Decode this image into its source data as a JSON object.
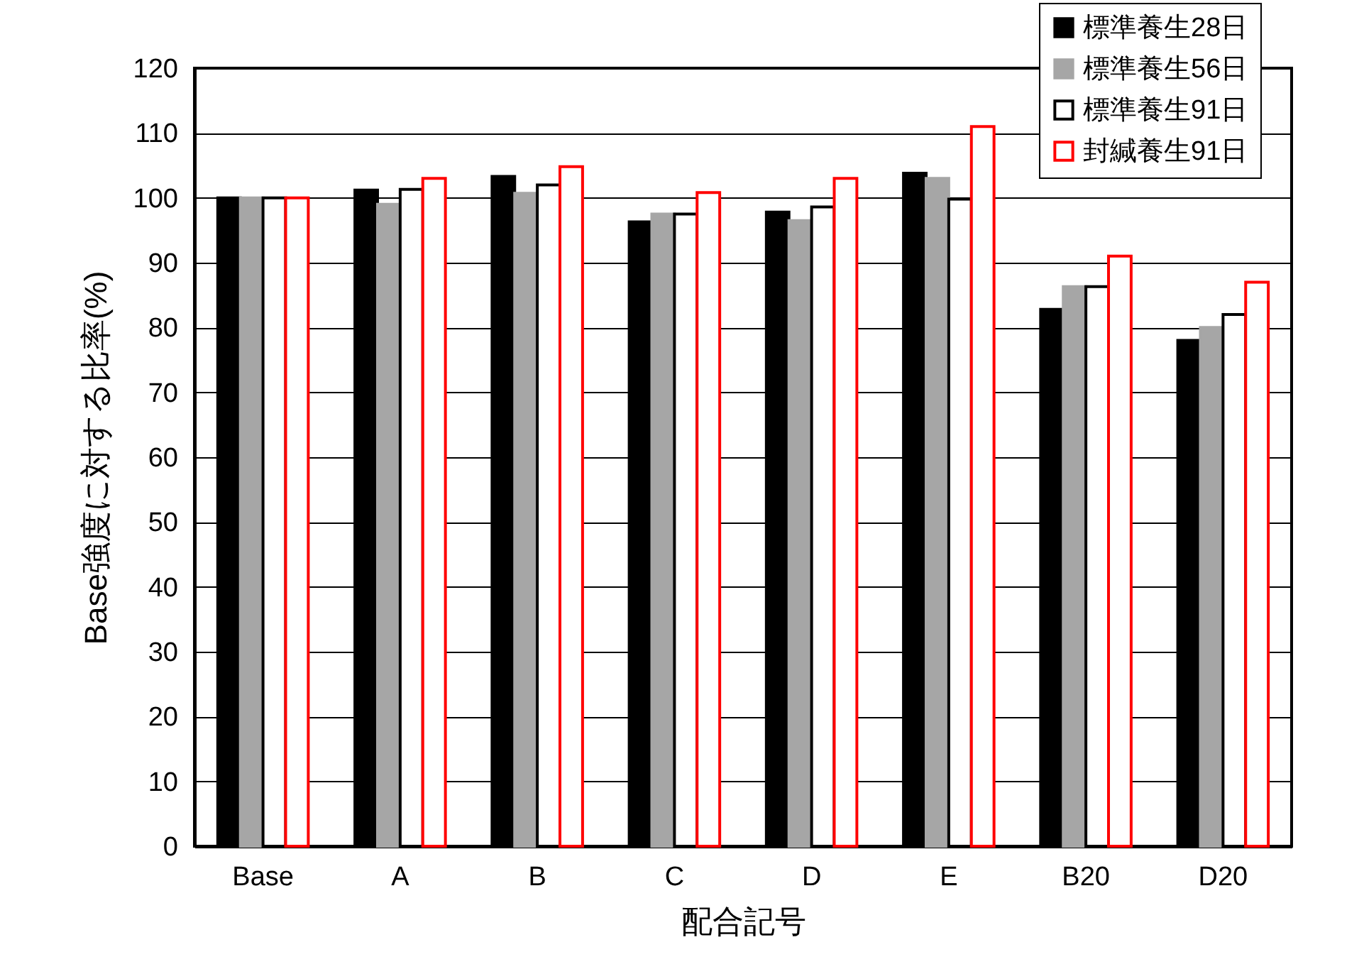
{
  "chart_data": {
    "type": "bar",
    "xlabel": "配合記号",
    "ylabel": "Base強度に対する比率(%)",
    "categories": [
      "Base",
      "A",
      "B",
      "C",
      "D",
      "E",
      "B20",
      "D20"
    ],
    "series": [
      {
        "name": "標準養生28日",
        "color": "#000000",
        "values": [
          100,
          101.2,
          103.3,
          96.3,
          97.8,
          103.8,
          82.8,
          78
        ]
      },
      {
        "name": "標準養生56日",
        "color": "#a6a6a6",
        "values": [
          100,
          99,
          100.7,
          97.5,
          96.5,
          103,
          86.3,
          80
        ]
      },
      {
        "name": "標準養生91日",
        "color": "#ffffff",
        "values": [
          100,
          101.3,
          102,
          97.5,
          98.6,
          99.8,
          86.3,
          82
        ]
      },
      {
        "name": "封緘養生91日",
        "color": "#ff0000",
        "values": [
          100,
          103,
          104.8,
          100.8,
          103,
          111,
          91,
          87
        ]
      }
    ],
    "ylim": [
      0,
      120
    ],
    "yticks": [
      0,
      10,
      20,
      30,
      40,
      50,
      60,
      70,
      80,
      90,
      100,
      110,
      120
    ],
    "grid": "y",
    "legend": "top right"
  }
}
